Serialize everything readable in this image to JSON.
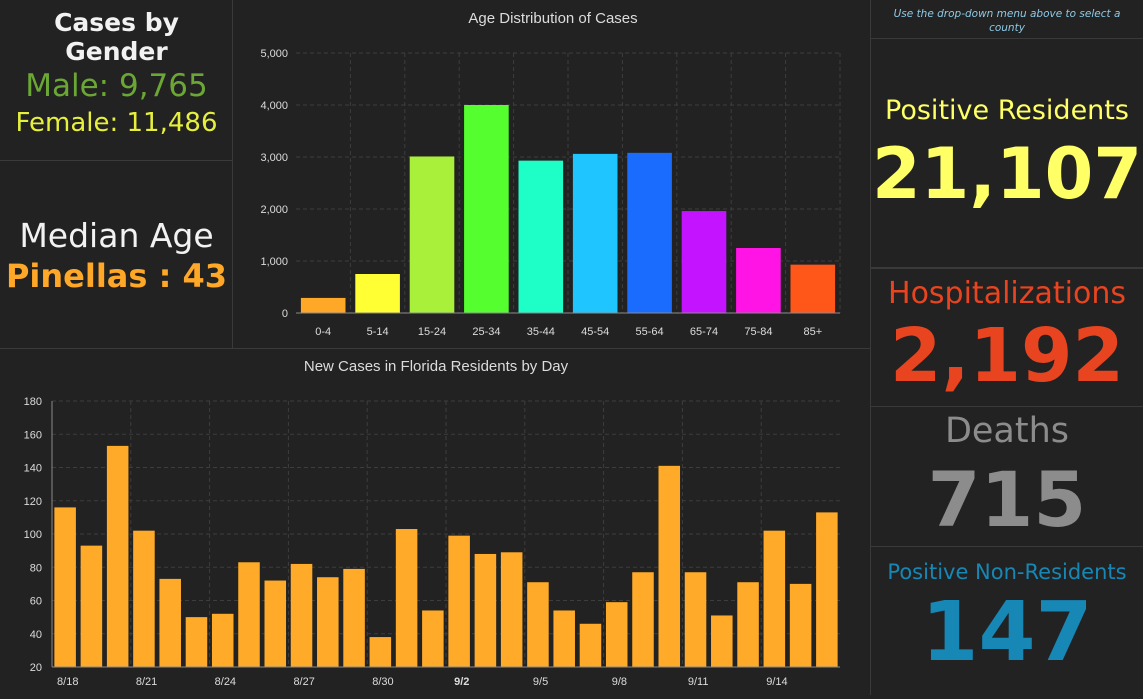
{
  "colors": {
    "male": "#6aa734",
    "female": "#e6f03c",
    "median_value": "#ffa726",
    "positive": "#ffff66",
    "hospitalizations": "#e8441f",
    "deaths": "#8c8c8c",
    "non_residents": "#1787b5",
    "day_bar": "#ffaa28"
  },
  "gender": {
    "title": "Cases by Gender",
    "male": "Male: 9,765",
    "female": "Female: 11,486"
  },
  "median": {
    "title": "Median Age",
    "value": "Pinellas : 43"
  },
  "note": "Use the drop-down menu above to select a county",
  "stats": {
    "positive_label": "Positive Residents",
    "positive_value": "21,107",
    "hosp_label": "Hospitalizations",
    "hosp_value": "2,192",
    "deaths_label": "Deaths",
    "deaths_value": "715",
    "nonres_label": "Positive Non-Residents",
    "nonres_value": "147"
  },
  "chart_data": [
    {
      "type": "bar",
      "title": "Age Distribution of Cases",
      "categories": [
        "0-4",
        "5-14",
        "15-24",
        "25-34",
        "35-44",
        "45-54",
        "55-64",
        "65-74",
        "75-84",
        "85+"
      ],
      "values": [
        290,
        750,
        3010,
        4000,
        2930,
        3060,
        3080,
        1960,
        1250,
        930
      ],
      "colors": [
        "#ffa726",
        "#ffff33",
        "#a8f03a",
        "#55ff2f",
        "#1effc8",
        "#1ec5ff",
        "#1a6cff",
        "#c414ff",
        "#ff13e5",
        "#ff5619"
      ],
      "ylim": [
        0,
        5000
      ],
      "yticks": [
        "0",
        "1,000",
        "2,000",
        "3,000",
        "4,000",
        "5,000"
      ],
      "ytick_values": [
        0,
        1000,
        2000,
        3000,
        4000,
        5000
      ],
      "grid": true
    },
    {
      "type": "bar",
      "title": "New Cases in Florida Residents by Day",
      "values": [
        116,
        93,
        153,
        102,
        73,
        50,
        52,
        83,
        72,
        82,
        74,
        79,
        38,
        103,
        54,
        99,
        88,
        89,
        71,
        54,
        46,
        59,
        77,
        141,
        77,
        51,
        71,
        102,
        70,
        113
      ],
      "xtick_labels": [
        "8/18",
        "8/21",
        "8/24",
        "8/27",
        "8/30",
        "9/2",
        "9/5",
        "9/8",
        "9/11",
        "9/14"
      ],
      "xtick_bold": "9/2",
      "ylim": [
        20,
        180
      ],
      "yticks": [
        "20",
        "40",
        "60",
        "80",
        "100",
        "120",
        "140",
        "160",
        "180"
      ],
      "ytick_values": [
        20,
        40,
        60,
        80,
        100,
        120,
        140,
        160,
        180
      ],
      "grid": true
    }
  ]
}
